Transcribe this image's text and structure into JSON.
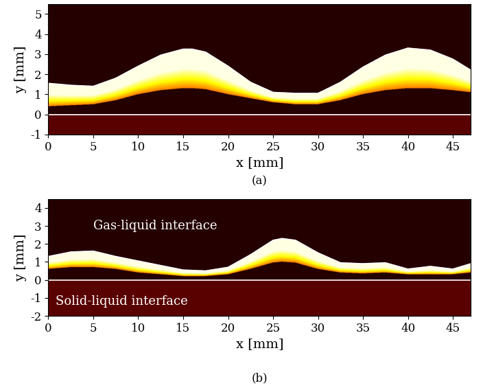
{
  "chart_data": [
    {
      "type": "image_profile",
      "panel_label": "(a)",
      "x_label": "x [mm]",
      "y_label": "y [mm]",
      "xlim": [
        0,
        47
      ],
      "ylim": [
        -1,
        5.5
      ],
      "xticks": [
        0,
        5,
        10,
        15,
        20,
        25,
        30,
        35,
        40,
        45
      ],
      "yticks": [
        -1,
        0,
        1,
        2,
        3,
        4,
        5
      ],
      "series": [
        {
          "color": "#ffffff",
          "line_style": "solid",
          "x": [
            0,
            2.5,
            5,
            7.5,
            10,
            12.5,
            15,
            16,
            17.5,
            20,
            22.5,
            25,
            27.5,
            30,
            32.5,
            35,
            37.5,
            40,
            42.5,
            45,
            47
          ],
          "values": [
            1.55,
            1.45,
            1.4,
            1.8,
            2.4,
            2.95,
            3.25,
            3.25,
            3.1,
            2.4,
            1.6,
            1.1,
            1.05,
            1.05,
            1.6,
            2.35,
            2.95,
            3.3,
            3.2,
            2.75,
            2.2
          ],
          "lower": [
            0.4,
            0.45,
            0.5,
            0.7,
            1.0,
            1.2,
            1.3,
            1.3,
            1.25,
            1.0,
            0.8,
            0.6,
            0.5,
            0.5,
            0.7,
            1.0,
            1.2,
            1.3,
            1.3,
            1.2,
            1.1
          ]
        },
        {
          "color": "#ffffff",
          "line_style": "solid",
          "x": [
            0,
            47
          ],
          "values": [
            0,
            0
          ]
        }
      ],
      "annotations": []
    },
    {
      "type": "image_profile",
      "panel_label": "(b)",
      "x_label": "x [mm]",
      "y_label": "y [mm]",
      "xlim": [
        0,
        47
      ],
      "ylim": [
        -2,
        4.5
      ],
      "xticks": [
        0,
        5,
        10,
        15,
        20,
        25,
        30,
        35,
        40,
        45
      ],
      "yticks": [
        -2,
        -1,
        0,
        1,
        2,
        3,
        4
      ],
      "series": [
        {
          "color": "#ffffff",
          "line_style": "solid",
          "x": [
            0,
            2.5,
            5,
            7.5,
            10,
            12.5,
            15,
            17.5,
            20,
            22.5,
            25,
            26,
            27.5,
            30,
            32.5,
            35,
            37.5,
            40,
            42.5,
            45,
            47
          ],
          "values": [
            1.3,
            1.55,
            1.6,
            1.3,
            1.05,
            0.8,
            0.55,
            0.5,
            0.7,
            1.4,
            2.2,
            2.3,
            2.2,
            1.5,
            0.95,
            0.9,
            0.95,
            0.6,
            0.75,
            0.6,
            0.9
          ],
          "lower": [
            0.6,
            0.7,
            0.7,
            0.6,
            0.4,
            0.3,
            0.2,
            0.2,
            0.3,
            0.6,
            0.95,
            1.0,
            0.95,
            0.6,
            0.4,
            0.35,
            0.4,
            0.3,
            0.3,
            0.3,
            0.4
          ]
        },
        {
          "color": "#ffffff",
          "line_style": "solid",
          "x": [
            0,
            47
          ],
          "values": [
            0,
            0
          ]
        }
      ],
      "annotations": [
        {
          "text": "Gas-liquid interface",
          "x": 5,
          "y": 3.0
        },
        {
          "text": "Solid-liquid interface",
          "x": 0.8,
          "y": -1.2
        }
      ]
    }
  ]
}
